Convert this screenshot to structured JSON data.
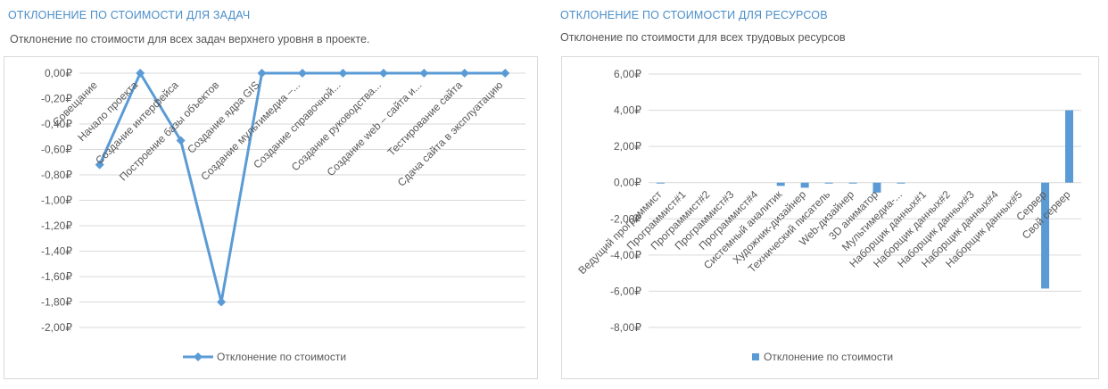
{
  "left": {
    "title": "ОТКЛОНЕНИЕ ПО СТОИМОСТИ ДЛЯ ЗАДАЧ",
    "subtitle": "Отклонение по стоимости для всех задач верхнего уровня в проекте."
  },
  "right": {
    "title": "ОТКЛОНЕНИЕ ПО СТОИМОСТИ ДЛЯ РЕСУРСОВ",
    "subtitle": "Отклонение по стоимости для всех трудовых ресурсов"
  },
  "chart_data": [
    {
      "type": "line",
      "categories": [
        "Совещание",
        "Начало проекта",
        "Создание интерфейса",
        "Построение базы объектов",
        "Создание ядра GIS",
        "Создание мультимедиа –...",
        "Создание справочной...",
        "Создание руководства...",
        "Создание web – сайта и...",
        "Тестирование сайта",
        "Сдача сайта в эксплуатацию"
      ],
      "series": [
        {
          "name": "Отклонение по стоимости",
          "values": [
            -0.72,
            0.0,
            -0.53,
            -1.8,
            0.0,
            0.0,
            0.0,
            0.0,
            0.0,
            0.0,
            0.0
          ]
        }
      ],
      "ylim": [
        -2.0,
        0.0
      ],
      "yticks": [
        "0,00₽",
        "-0,20₽",
        "-0,40₽",
        "-0,60₽",
        "-0,80₽",
        "-1,00₽",
        "-1,20₽",
        "-1,40₽",
        "-1,60₽",
        "-1,80₽",
        "-2,00₽"
      ],
      "color": "#5b9bd5",
      "grid": true,
      "legend": "bottom"
    },
    {
      "type": "bar",
      "categories": [
        "Ведущий программист",
        "Программист#1",
        "Программист#2",
        "Программист#3",
        "Программист#4",
        "Системный аналитик",
        "Художник-дизайнер",
        "Технический писатель",
        "Web-дизайнер",
        "3D аниматор",
        "Мультимедиа-...",
        "Наборщик данных#1",
        "Наборщик данных#2",
        "Наборщик данных#3",
        "Наборщик данных#4",
        "Наборщик данных#5",
        "Сервер",
        "Свой сервер"
      ],
      "series": [
        {
          "name": "Отклонение по стоимости",
          "values": [
            -0.05,
            0,
            0,
            0,
            0,
            -0.18,
            -0.28,
            -0.05,
            -0.05,
            -0.55,
            -0.05,
            0,
            0,
            0,
            0,
            0,
            -5.85,
            4.0
          ]
        }
      ],
      "ylim": [
        -8.0,
        6.0
      ],
      "yticks": [
        "6,00₽",
        "4,00₽",
        "2,00₽",
        "0,00₽",
        "-2,00₽",
        "-4,00₽",
        "-6,00₽",
        "-8,00₽"
      ],
      "color": "#5b9bd5",
      "grid": true,
      "legend": "bottom"
    }
  ]
}
